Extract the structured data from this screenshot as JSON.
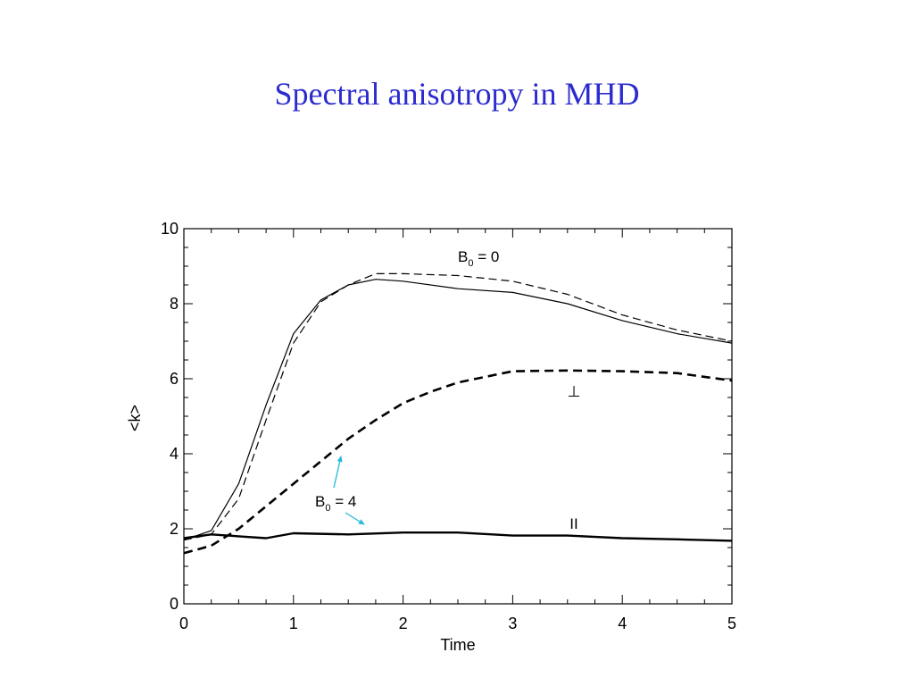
{
  "slide": {
    "title": "Spectral anisotropy in MHD"
  },
  "chart_data": {
    "type": "line",
    "title": "",
    "xlabel": "Time",
    "ylabel": "<k>",
    "xlim": [
      0,
      5
    ],
    "ylim": [
      0,
      10
    ],
    "x_ticks": [
      0,
      1,
      2,
      3,
      4,
      5
    ],
    "y_ticks": [
      0,
      2,
      4,
      6,
      8,
      10
    ],
    "x_tick_labels": [
      "0",
      "1",
      "2",
      "3",
      "4",
      "5"
    ],
    "y_tick_labels": [
      "0",
      "2",
      "4",
      "6",
      "8",
      "10"
    ],
    "grid": false,
    "annotations": {
      "b0_zero": {
        "main": "B",
        "sub": "0",
        "rest": " = 0"
      },
      "b0_four": {
        "main": "B",
        "sub": "0",
        "rest": " = 4"
      },
      "perp": "⊥",
      "par": "II",
      "arrow_color": "#22b8d8"
    },
    "series": [
      {
        "group": "B0 = 0",
        "component": "par",
        "style": "thin-solid",
        "x": [
          0,
          0.25,
          0.5,
          0.75,
          1,
          1.25,
          1.5,
          1.75,
          2,
          2.5,
          3,
          3.5,
          4,
          4.5,
          5
        ],
        "y": [
          1.7,
          1.95,
          3.2,
          5.3,
          7.2,
          8.1,
          8.5,
          8.65,
          8.6,
          8.4,
          8.3,
          8.0,
          7.55,
          7.2,
          6.95
        ]
      },
      {
        "group": "B0 = 0",
        "component": "perp",
        "style": "thin-dashed",
        "x": [
          0,
          0.25,
          0.5,
          0.75,
          1,
          1.25,
          1.5,
          1.75,
          2,
          2.5,
          3,
          3.5,
          4,
          4.5,
          5
        ],
        "y": [
          1.7,
          1.85,
          2.8,
          4.9,
          6.95,
          8.05,
          8.5,
          8.8,
          8.8,
          8.75,
          8.6,
          8.25,
          7.7,
          7.3,
          7.0
        ]
      },
      {
        "group": "B0 = 4",
        "component": "perp",
        "style": "thick-dashed",
        "x": [
          0,
          0.25,
          0.5,
          0.75,
          1,
          1.25,
          1.5,
          1.75,
          2,
          2.25,
          2.5,
          3,
          3.5,
          4,
          4.5,
          5
        ],
        "y": [
          1.35,
          1.55,
          2.0,
          2.6,
          3.2,
          3.8,
          4.4,
          4.9,
          5.35,
          5.65,
          5.9,
          6.2,
          6.22,
          6.2,
          6.15,
          5.95
        ]
      },
      {
        "group": "B0 = 4",
        "component": "par",
        "style": "thick-solid",
        "x": [
          0,
          0.25,
          0.5,
          0.75,
          1,
          1.5,
          2,
          2.5,
          3,
          3.5,
          4,
          4.5,
          5
        ],
        "y": [
          1.75,
          1.85,
          1.8,
          1.75,
          1.88,
          1.85,
          1.9,
          1.9,
          1.82,
          1.82,
          1.75,
          1.72,
          1.68
        ]
      }
    ]
  }
}
